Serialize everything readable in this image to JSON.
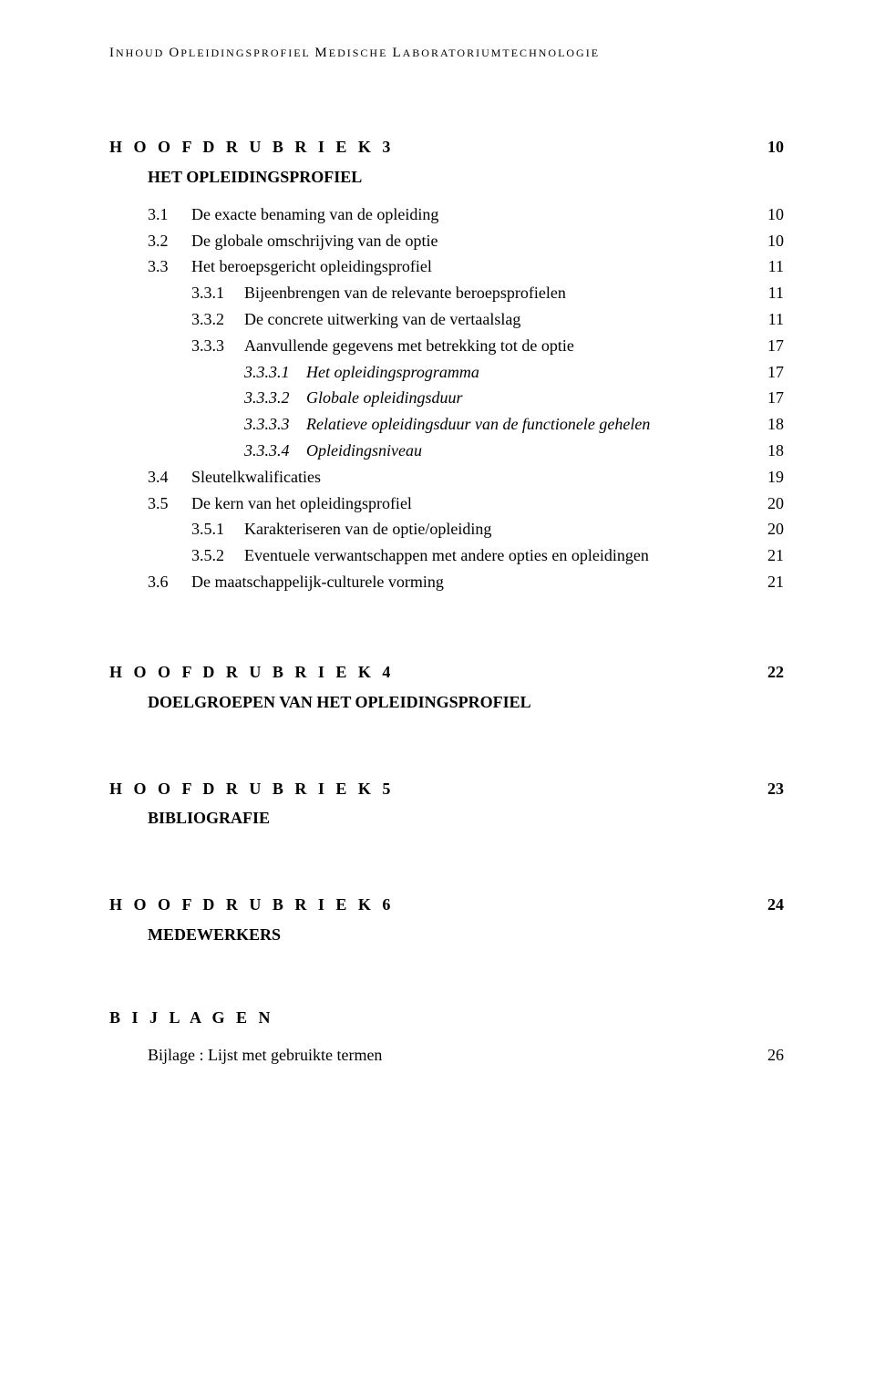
{
  "running_head": {
    "part1_caps": "I",
    "part1_rest": "NHOUD ",
    "part2_caps": "O",
    "part2_rest": "PLEIDINGSPROFIEL ",
    "part3_caps": "M",
    "part3_rest": "EDISCHE ",
    "part4_caps": "L",
    "part4_rest": "ABORATORIUMTECHNOLOGIE"
  },
  "chapters": [
    {
      "heading": "H O O F D R U B R I E K  3",
      "page": "10",
      "title": "HET OPLEIDINGSPROFIEL",
      "entries": [
        {
          "level": 1,
          "num": "3.1",
          "text": "De exacte benaming van de opleiding",
          "page": "10"
        },
        {
          "level": 1,
          "num": "3.2",
          "text": "De globale omschrijving van de optie",
          "page": "10"
        },
        {
          "level": 1,
          "num": "3.3",
          "text": "Het beroepsgericht opleidingsprofiel",
          "page": "11"
        },
        {
          "level": 2,
          "num": "3.3.1",
          "text": "Bijeenbrengen van de relevante beroepsprofielen",
          "page": "11"
        },
        {
          "level": 2,
          "num": "3.3.2",
          "text": "De concrete uitwerking van de vertaalslag",
          "page": "11"
        },
        {
          "level": 2,
          "num": "3.3.3",
          "text": "Aanvullende gegevens met betrekking tot de optie",
          "page": "17"
        },
        {
          "level": 3,
          "num": "3.3.3.1",
          "text": "Het opleidingsprogramma",
          "page": "17"
        },
        {
          "level": 3,
          "num": "3.3.3.2",
          "text": "Globale opleidingsduur",
          "page": "17"
        },
        {
          "level": 3,
          "num": "3.3.3.3",
          "text": "Relatieve opleidingsduur van de functionele gehelen",
          "page": "18"
        },
        {
          "level": 3,
          "num": "3.3.3.4",
          "text": "Opleidingsniveau",
          "page": "18"
        },
        {
          "level": 1,
          "num": "3.4",
          "text": "Sleutelkwalificaties",
          "page": "19"
        },
        {
          "level": 1,
          "num": "3.5",
          "text": "De kern van het opleidingsprofiel",
          "page": "20"
        },
        {
          "level": 2,
          "num": "3.5.1",
          "text": "Karakteriseren van de optie/opleiding",
          "page": "20"
        },
        {
          "level": 2,
          "num": "3.5.2",
          "text": "Eventuele verwantschappen met andere opties en opleidingen",
          "page": "21"
        },
        {
          "level": 1,
          "num": "3.6",
          "text": "De maatschappelijk-culturele vorming",
          "page": "21"
        }
      ]
    },
    {
      "heading": "H O O F D R U B R I E K  4",
      "page": "22",
      "title": "DOELGROEPEN VAN HET OPLEIDINGSPROFIEL",
      "entries": []
    },
    {
      "heading": "H O O F D R U B R I E K  5",
      "page": "23",
      "title": "BIBLIOGRAFIE",
      "entries": []
    },
    {
      "heading": "H O O F D R U B R I E K  6",
      "page": "24",
      "title": "MEDEWERKERS",
      "entries": []
    }
  ],
  "appendix": {
    "heading": "B I J L A G E N",
    "entries": [
      {
        "text": "Bijlage : Lijst met gebruikte termen",
        "page": "26"
      }
    ]
  }
}
